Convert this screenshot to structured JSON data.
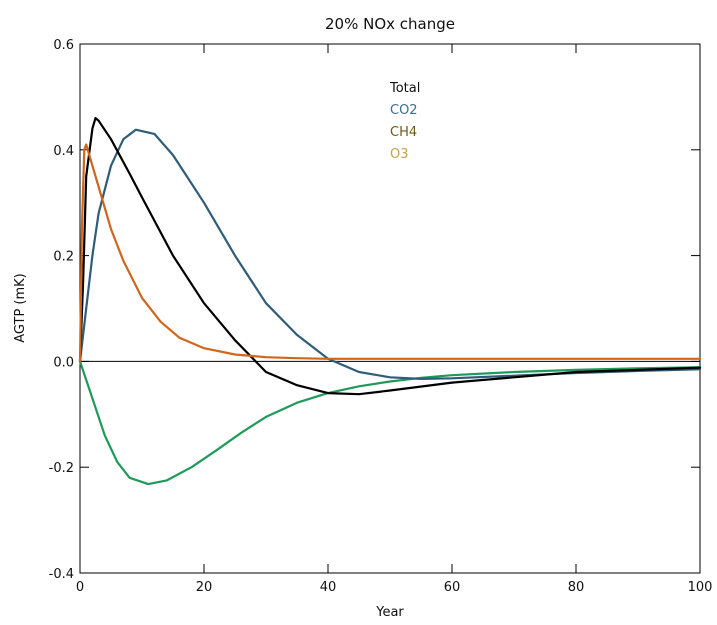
{
  "chart_data": {
    "type": "line",
    "title": "20% NOx change",
    "xlabel": "Year",
    "ylabel": "AGTP (mK)",
    "xlim": [
      0,
      100
    ],
    "ylim": [
      -0.4,
      0.6
    ],
    "xticks": [
      0,
      20,
      40,
      60,
      80,
      100
    ],
    "xtick_labels": [
      "0",
      "20",
      "40",
      "60",
      "80",
      "100"
    ],
    "yticks": [
      -0.4,
      -0.2,
      0.0,
      0.2,
      0.4,
      0.6
    ],
    "ytick_labels": [
      "-0.4",
      "-0.2",
      "0.0",
      "0.2",
      "0.4",
      "0.6"
    ],
    "grid": false,
    "legend_position": "top-center",
    "series": [
      {
        "name": "Total",
        "color": "#000000",
        "x": [
          0,
          0.5,
          1,
          2,
          2.5,
          3,
          5,
          8,
          10,
          15,
          20,
          25,
          30,
          35,
          40,
          45,
          50,
          60,
          70,
          80,
          90,
          100
        ],
        "y": [
          0,
          0.15,
          0.35,
          0.44,
          0.46,
          0.455,
          0.42,
          0.355,
          0.31,
          0.2,
          0.11,
          0.04,
          -0.02,
          -0.045,
          -0.06,
          -0.062,
          -0.055,
          -0.04,
          -0.03,
          -0.02,
          -0.016,
          -0.012
        ]
      },
      {
        "name": "CO2",
        "color": "#2f5d78",
        "x": [
          0,
          1,
          2,
          3,
          5,
          7,
          9,
          12,
          15,
          20,
          25,
          30,
          35,
          40,
          45,
          50,
          55,
          60,
          70,
          80,
          90,
          100
        ],
        "y": [
          0,
          0.1,
          0.2,
          0.28,
          0.37,
          0.42,
          0.438,
          0.43,
          0.39,
          0.3,
          0.2,
          0.11,
          0.05,
          0.005,
          -0.02,
          -0.03,
          -0.033,
          -0.032,
          -0.027,
          -0.022,
          -0.018,
          -0.015
        ]
      },
      {
        "name": "CH4",
        "color": "#1f9a5a",
        "x": [
          0,
          2,
          4,
          6,
          8,
          11,
          14,
          18,
          22,
          26,
          30,
          35,
          40,
          45,
          50,
          55,
          60,
          70,
          80,
          90,
          100
        ],
        "y": [
          0,
          -0.07,
          -0.14,
          -0.19,
          -0.22,
          -0.232,
          -0.225,
          -0.2,
          -0.168,
          -0.135,
          -0.105,
          -0.078,
          -0.06,
          -0.047,
          -0.038,
          -0.031,
          -0.026,
          -0.02,
          -0.016,
          -0.013,
          -0.011
        ]
      },
      {
        "name": "O3",
        "color": "#d0651c",
        "x": [
          0,
          0.3,
          0.7,
          1,
          1.5,
          2,
          3,
          5,
          7,
          10,
          13,
          16,
          20,
          25,
          30,
          35,
          40,
          50,
          60,
          80,
          100
        ],
        "y": [
          0,
          0.25,
          0.4,
          0.41,
          0.39,
          0.37,
          0.33,
          0.25,
          0.19,
          0.12,
          0.075,
          0.045,
          0.025,
          0.013,
          0.008,
          0.006,
          0.005,
          0.005,
          0.005,
          0.005,
          0.005
        ]
      }
    ]
  }
}
